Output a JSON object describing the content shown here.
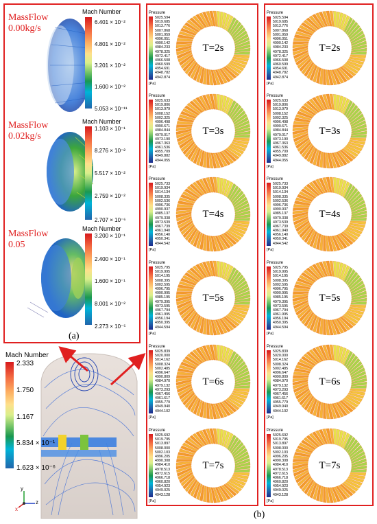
{
  "panel_a": {
    "letter": "(a)",
    "rows": [
      {
        "massflow_line1": "MassFlow",
        "massflow_line2": "0.00kg/s",
        "colorbar_title": "Mach Number",
        "ticks": [
          "6.401 × 10⁻²",
          "4.801 × 10⁻²",
          "3.201 × 10⁻²",
          "1.600 × 10⁻²",
          "5.053 × 10⁻¹¹"
        ]
      },
      {
        "massflow_line1": "MassFlow",
        "massflow_line2": "0.02kg/s",
        "colorbar_title": "Mach Number",
        "ticks": [
          "1.103 × 10⁻¹",
          "8.276 × 10⁻²",
          "5.517 × 10⁻²",
          "2.759 × 10⁻²",
          "2.707 × 10⁻⁶"
        ]
      },
      {
        "massflow_line1": "MassFlow",
        "massflow_line2": "0.05",
        "colorbar_title": "Mach Number",
        "ticks": [
          "3.200 × 10⁻¹",
          "2.400 × 10⁻¹",
          "1.600 × 10⁻¹",
          "8.001 × 10⁻²",
          "2.273 × 10⁻⁵"
        ]
      }
    ]
  },
  "bottom_left": {
    "colorbar_title": "Mach Number",
    "ticks": [
      "2.333",
      "1.750",
      "1.167",
      "5.834 × 10⁻¹",
      "1.623 × 10⁻⁶"
    ],
    "axis_labels": {
      "x": "x",
      "y": "y",
      "z": "z"
    }
  },
  "panel_b": {
    "letter": "(b)",
    "pressure_title": "Pressure",
    "unit": "[Pa]",
    "rows": [
      {
        "time": "T=2s",
        "col1": [
          "5025.594",
          "5019.685",
          "5013.776",
          "5007.868",
          "5001.959",
          "4996.051",
          "4990.142",
          "4984.233",
          "4978.325",
          "4972.417",
          "4966.508",
          "4960.599",
          "4954.691",
          "4948.782",
          "4942.874"
        ],
        "col2": [
          "5025.594",
          "5019.685",
          "5013.776",
          "5007.868",
          "5001.959",
          "4996.051",
          "4990.142",
          "4984.233",
          "4978.325",
          "4972.417",
          "4966.508",
          "4960.599",
          "4954.691",
          "4948.782",
          "4942.874"
        ]
      },
      {
        "time": "T=3s",
        "col1": [
          "5025.633",
          "5019.806",
          "5013.979",
          "5008.152",
          "5002.325",
          "4996.498",
          "4990.671",
          "4984.844",
          "4979.017",
          "4973.190",
          "4967.363",
          "4961.536",
          "4955.709",
          "4949.882",
          "4944.055"
        ],
        "col2": [
          "5025.633",
          "5019.806",
          "5013.979",
          "5008.152",
          "5002.325",
          "4996.498",
          "4990.671",
          "4984.844",
          "4979.017",
          "4973.190",
          "4967.363",
          "4961.536",
          "4955.709",
          "4949.882",
          "4944.055"
        ]
      },
      {
        "time": "T=4s",
        "col1": [
          "5025.733",
          "5019.934",
          "5014.134",
          "5008.335",
          "5002.536",
          "4996.736",
          "4990.937",
          "4985.137",
          "4979.338",
          "4973.539",
          "4967.739",
          "4961.940",
          "4956.140",
          "4950.341",
          "4944.542"
        ],
        "col2": [
          "5025.733",
          "5019.934",
          "5014.134",
          "5008.335",
          "5002.536",
          "4996.736",
          "4990.937",
          "4985.137",
          "4979.338",
          "4973.539",
          "4967.739",
          "4961.940",
          "4956.140",
          "4950.341",
          "4944.542"
        ]
      },
      {
        "time": "T=5s",
        "col1": [
          "5025.795",
          "5019.995",
          "5014.195",
          "5008.395",
          "5002.595",
          "4996.795",
          "4990.995",
          "4985.195",
          "4979.395",
          "4973.595",
          "4967.794",
          "4961.995",
          "4956.194",
          "4950.395",
          "4944.594"
        ],
        "col2": [
          "5025.795",
          "5019.995",
          "5014.195",
          "5008.395",
          "5002.595",
          "4996.795",
          "4990.995",
          "4985.195",
          "4979.395",
          "4973.595",
          "4967.794",
          "4961.995",
          "4956.194",
          "4950.395",
          "4944.594"
        ]
      },
      {
        "time": "T=6s",
        "col1": [
          "5025.839",
          "5020.000",
          "5014.162",
          "5008.324",
          "5002.485",
          "4996.647",
          "4990.809",
          "4984.970",
          "4979.132",
          "4973.293",
          "4967.456",
          "4961.617",
          "4955.779",
          "4949.940",
          "4944.102"
        ],
        "col2": [
          "5025.839",
          "5020.000",
          "5014.162",
          "5008.324",
          "5002.485",
          "4996.647",
          "4990.809",
          "4984.970",
          "4979.132",
          "4973.293",
          "4967.456",
          "4961.617",
          "4955.779",
          "4949.940",
          "4944.102"
        ]
      },
      {
        "time": "T=7s",
        "col1": [
          "5025.692",
          "5019.795",
          "5013.897",
          "5008.000",
          "5002.103",
          "4996.205",
          "4990.308",
          "4984.410",
          "4978.513",
          "4972.615",
          "4966.718",
          "4960.820",
          "4954.923",
          "4949.025",
          "4943.128"
        ],
        "col2": [
          "5025.692",
          "5019.795",
          "5013.897",
          "5008.000",
          "5002.103",
          "4996.205",
          "4990.308",
          "4984.410",
          "4978.513",
          "4972.615",
          "4966.718",
          "4960.820",
          "4954.923",
          "4949.025",
          "4943.128"
        ]
      }
    ]
  }
}
